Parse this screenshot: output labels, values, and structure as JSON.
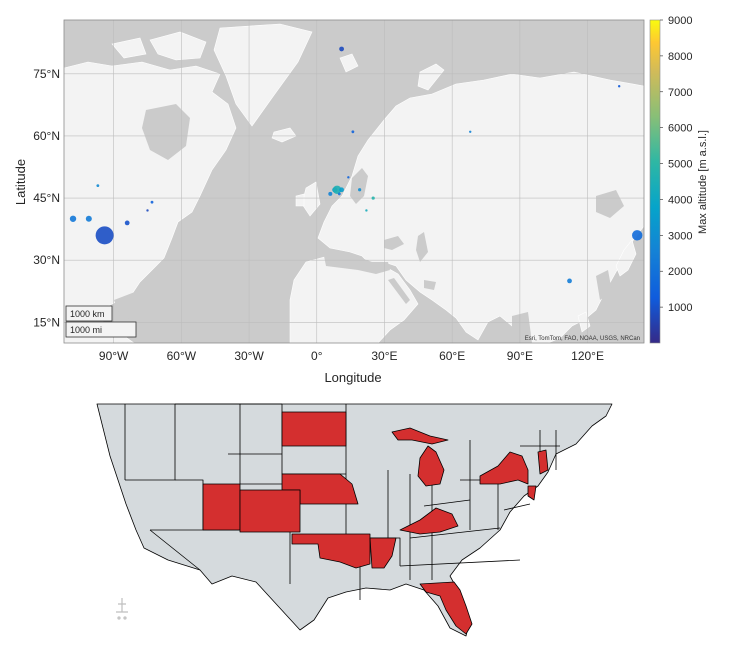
{
  "world_map": {
    "x_axis_label": "Longitude",
    "y_axis_label": "Latitude",
    "x_ticks": [
      "90°W",
      "60°W",
      "30°W",
      "0°",
      "30°E",
      "60°E",
      "90°E",
      "120°E"
    ],
    "y_ticks": [
      "75°N",
      "60°N",
      "45°N",
      "30°N",
      "15°N"
    ],
    "scale_bar": {
      "km": "1000 km",
      "mi": "1000 mi"
    },
    "attribution": "Esri, TomTom, FAO, NOAA, USGS, NRCan",
    "colorbar": {
      "label": "Max altitude [m a.s.l.]",
      "ticks": [
        "9000",
        "8000",
        "7000",
        "6000",
        "5000",
        "4000",
        "3000",
        "2000",
        "1000"
      ],
      "min": 0,
      "max": 9000
    },
    "colors": {
      "ocean": "#cbcbcb",
      "land": "#f3f3f3",
      "border": "#ffffff",
      "grid": "#bdbdbd"
    }
  },
  "chart_data": {
    "type": "scatter",
    "title": "",
    "xlabel": "Longitude",
    "ylabel": "Latitude",
    "xlim": [
      -112,
      145
    ],
    "ylim": [
      10,
      88
    ],
    "colorbar_label": "Max altitude [m a.s.l.]",
    "points": [
      {
        "lon": 11,
        "lat": 81,
        "altitude": 800
      },
      {
        "lon": 16,
        "lat": 61,
        "altitude": 1500
      },
      {
        "lon": 68,
        "lat": 61,
        "altitude": 2600
      },
      {
        "lon": 134,
        "lat": 72,
        "altitude": 1200
      },
      {
        "lon": -108,
        "lat": 40,
        "altitude": 2200
      },
      {
        "lon": -101,
        "lat": 40,
        "altitude": 2300
      },
      {
        "lon": -97,
        "lat": 48,
        "altitude": 2800
      },
      {
        "lon": -94,
        "lat": 36,
        "altitude": 900
      },
      {
        "lon": -84,
        "lat": 39,
        "altitude": 1000
      },
      {
        "lon": -75,
        "lat": 42,
        "altitude": 800
      },
      {
        "lon": -73,
        "lat": 44,
        "altitude": 1500
      },
      {
        "lon": 8,
        "lat": 47,
        "altitude": 3200
      },
      {
        "lon": 9,
        "lat": 47,
        "altitude": 4500
      },
      {
        "lon": 11,
        "lat": 47,
        "altitude": 3600
      },
      {
        "lon": 10,
        "lat": 46,
        "altitude": 2000
      },
      {
        "lon": 6,
        "lat": 46,
        "altitude": 2600
      },
      {
        "lon": 14,
        "lat": 50,
        "altitude": 1500
      },
      {
        "lon": 19,
        "lat": 47,
        "altitude": 3000
      },
      {
        "lon": 25,
        "lat": 45,
        "altitude": 4800
      },
      {
        "lon": 22,
        "lat": 42,
        "altitude": 4300
      },
      {
        "lon": 142,
        "lat": 36,
        "altitude": 1800
      },
      {
        "lon": 112,
        "lat": 25,
        "altitude": 2400
      }
    ]
  },
  "us_map": {
    "colors": {
      "highlight": "#d42f2f",
      "default": "#d5dadd",
      "border": "#000000"
    },
    "highlighted_states": [
      "North Dakota",
      "Nebraska",
      "Oklahoma",
      "Arkansas",
      "Utah",
      "Colorado",
      "Kentucky",
      "Michigan",
      "New York",
      "New Hampshire",
      "Florida",
      "New Jersey"
    ]
  }
}
